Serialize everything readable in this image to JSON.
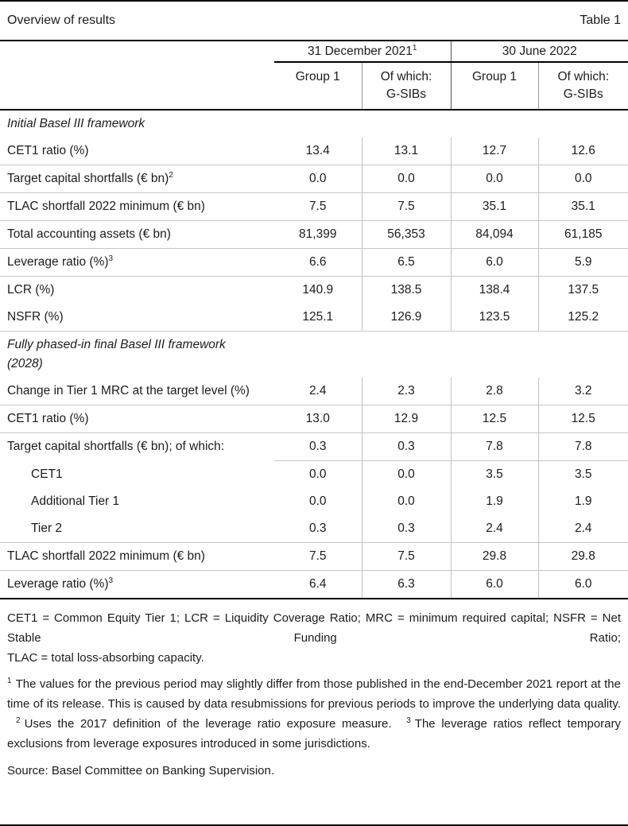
{
  "header": {
    "title": "Overview of results",
    "table_label": "Table 1"
  },
  "table": {
    "groups": [
      {
        "label": "31 December 2021",
        "sup": "1"
      },
      {
        "label": "30 June 2022",
        "sup": ""
      }
    ],
    "subcols": [
      {
        "l1": "Group 1",
        "l2": ""
      },
      {
        "l1": "Of which:",
        "l2": "G-SIBs"
      },
      {
        "l1": "Group 1",
        "l2": ""
      },
      {
        "l1": "Of which:",
        "l2": "G-SIBs"
      }
    ],
    "rows": [
      {
        "type": "section",
        "label": "Initial Basel III framework"
      },
      {
        "type": "data",
        "label": "CET1 ratio (%)",
        "values": [
          "13.4",
          "13.1",
          "12.7",
          "12.6"
        ]
      },
      {
        "type": "data",
        "label": "Target capital shortfalls (€ bn)",
        "sup": "2",
        "values": [
          "0.0",
          "0.0",
          "0.0",
          "0.0"
        ],
        "topline": true
      },
      {
        "type": "data",
        "label": "TLAC shortfall 2022 minimum (€ bn)",
        "values": [
          "7.5",
          "7.5",
          "35.1",
          "35.1"
        ],
        "topline": true
      },
      {
        "type": "data",
        "label": "Total accounting assets (€ bn)",
        "values": [
          "81,399",
          "56,353",
          "84,094",
          "61,185"
        ],
        "topline": true
      },
      {
        "type": "data",
        "label": "Leverage ratio (%)",
        "sup": "3",
        "values": [
          "6.6",
          "6.5",
          "6.0",
          "5.9"
        ],
        "topline": true
      },
      {
        "type": "data",
        "label": "LCR (%)",
        "values": [
          "140.9",
          "138.5",
          "138.4",
          "137.5"
        ],
        "topline": true
      },
      {
        "type": "data",
        "label": "NSFR (%)",
        "values": [
          "125.1",
          "126.9",
          "123.5",
          "125.2"
        ]
      },
      {
        "type": "section",
        "label": "Fully phased-in final Basel III framework (2028)",
        "topline": true
      },
      {
        "type": "data",
        "label": "Change in Tier 1 MRC at the target level (%)",
        "values": [
          "2.4",
          "2.3",
          "2.8",
          "3.2"
        ]
      },
      {
        "type": "data",
        "label": "CET1 ratio (%)",
        "values": [
          "13.0",
          "12.9",
          "12.5",
          "12.5"
        ],
        "topline": true
      },
      {
        "type": "data",
        "label": "Target capital shortfalls (€ bn); of which:",
        "values": [
          "0.3",
          "0.3",
          "7.8",
          "7.8"
        ],
        "topline": true
      },
      {
        "type": "data",
        "label": "CET1",
        "values": [
          "0.0",
          "0.0",
          "3.5",
          "3.5"
        ],
        "indent": true,
        "partial_topline": true
      },
      {
        "type": "data",
        "label": "Additional Tier 1",
        "values": [
          "0.0",
          "0.0",
          "1.9",
          "1.9"
        ],
        "indent": true
      },
      {
        "type": "data",
        "label": "Tier 2",
        "values": [
          "0.3",
          "0.3",
          "2.4",
          "2.4"
        ],
        "indent": true
      },
      {
        "type": "data",
        "label": "TLAC shortfall 2022 minimum (€ bn)",
        "values": [
          "7.5",
          "7.5",
          "29.8",
          "29.8"
        ],
        "topline": true
      },
      {
        "type": "data",
        "label": "Leverage ratio (%)",
        "sup": "3",
        "values": [
          "6.4",
          "6.3",
          "6.0",
          "6.0"
        ],
        "topline": true
      }
    ]
  },
  "footnotes": {
    "abbrev_justified": "CET1 = Common Equity Tier 1; LCR = Liquidity Coverage Ratio; MRC = minimum required capital; NSFR = Net Stable Funding Ratio;",
    "abbrev_last": "TLAC = total loss-absorbing capacity.",
    "notes": [
      {
        "sup": "1",
        "text": "The values for the previous period may slightly differ from those published in the end-December 2021 report at the time of its release. This is caused by data resubmissions for previous periods to improve the underlying data quality."
      },
      {
        "sup": "2",
        "text": "Uses the 2017 definition of the leverage ratio exposure measure."
      },
      {
        "sup": "3",
        "text": "The leverage ratios reflect temporary exclusions from leverage exposures introduced in some jurisdictions."
      }
    ],
    "source": "Source: Basel Committee on Banking Supervision."
  },
  "colors": {
    "background": "#ffffff",
    "text": "#1c1c1c",
    "rule_black": "#000000",
    "rule_gray": "#c6c6c6",
    "divider_gray": "#c2c2c2"
  }
}
